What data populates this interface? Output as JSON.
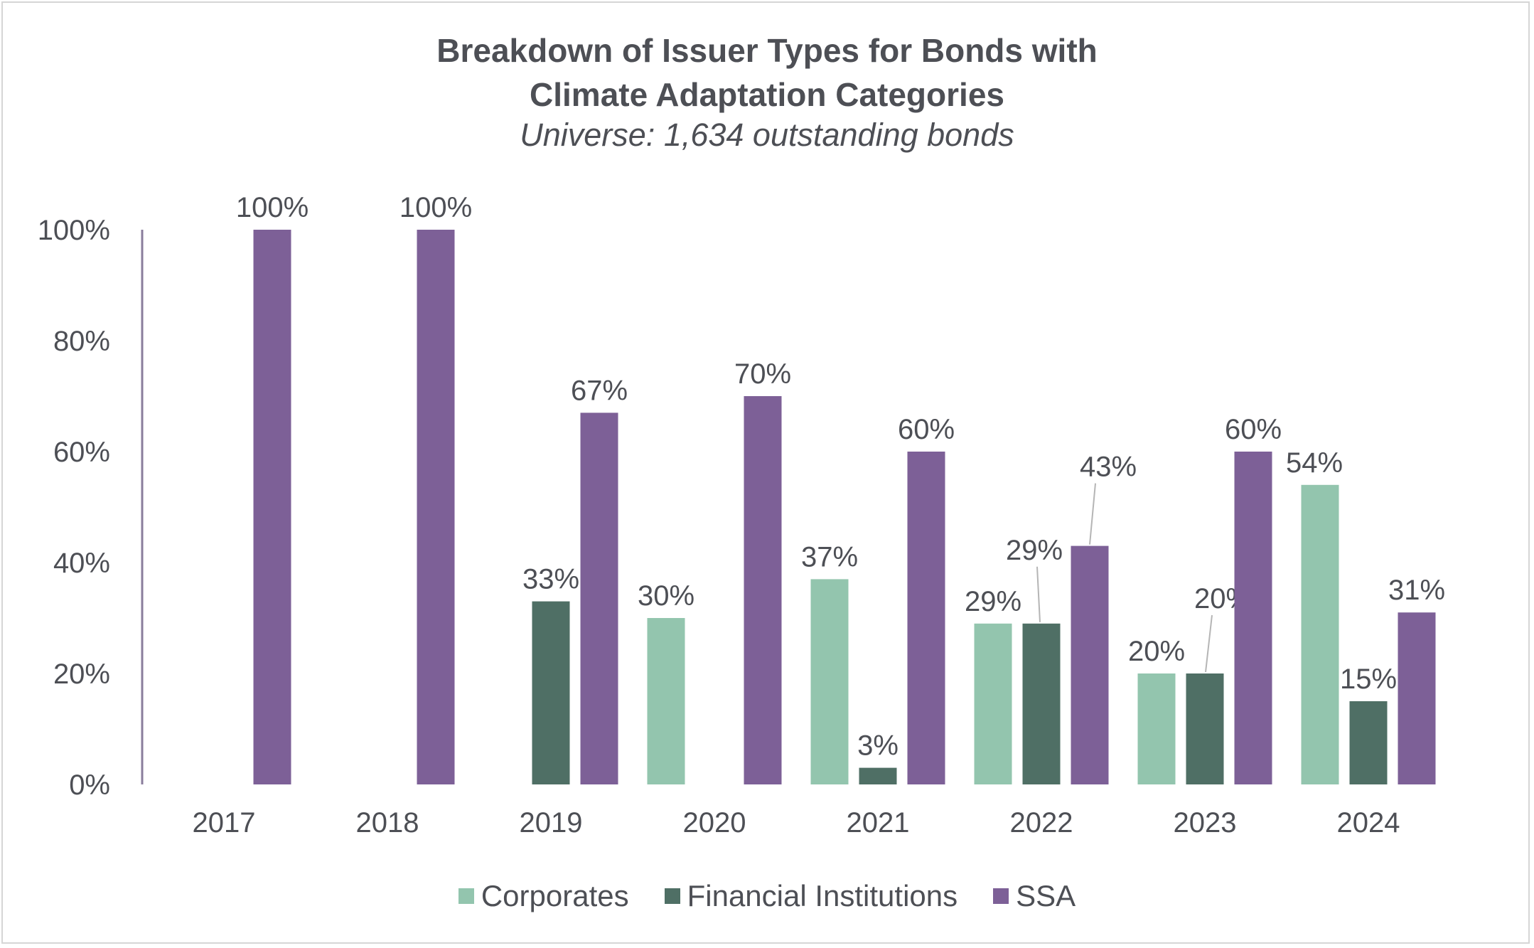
{
  "chart_data": {
    "type": "bar",
    "title_line1": "Breakdown of Issuer Types for Bonds with",
    "title_line2": "Climate Adaptation Categories",
    "subtitle": "Universe: 1,634 outstanding bonds",
    "categories": [
      "2017",
      "2018",
      "2019",
      "2020",
      "2021",
      "2022",
      "2023",
      "2024"
    ],
    "ylim": [
      0,
      100
    ],
    "yticks": [
      "0%",
      "20%",
      "40%",
      "60%",
      "80%",
      "100%"
    ],
    "series": [
      {
        "name": "Corporates",
        "color": "#93c5ae",
        "values": [
          null,
          null,
          null,
          30,
          37,
          29,
          20,
          54
        ],
        "labels": [
          "",
          "",
          "",
          "30%",
          "37%",
          "29%",
          "20%",
          "54%"
        ]
      },
      {
        "name": "Financial Institutions",
        "color": "#4f6f65",
        "values": [
          null,
          null,
          33,
          null,
          3,
          29,
          20,
          15
        ],
        "labels": [
          "",
          "",
          "33%",
          "",
          "3%",
          "29%",
          "20%",
          "15%"
        ]
      },
      {
        "name": "SSA",
        "color": "#7d6097",
        "values": [
          100,
          100,
          67,
          70,
          60,
          43,
          60,
          31
        ],
        "labels": [
          "100%",
          "100%",
          "67%",
          "70%",
          "60%",
          "43%",
          "60%",
          "31%"
        ]
      }
    ],
    "legend_position": "bottom",
    "grid": false
  }
}
